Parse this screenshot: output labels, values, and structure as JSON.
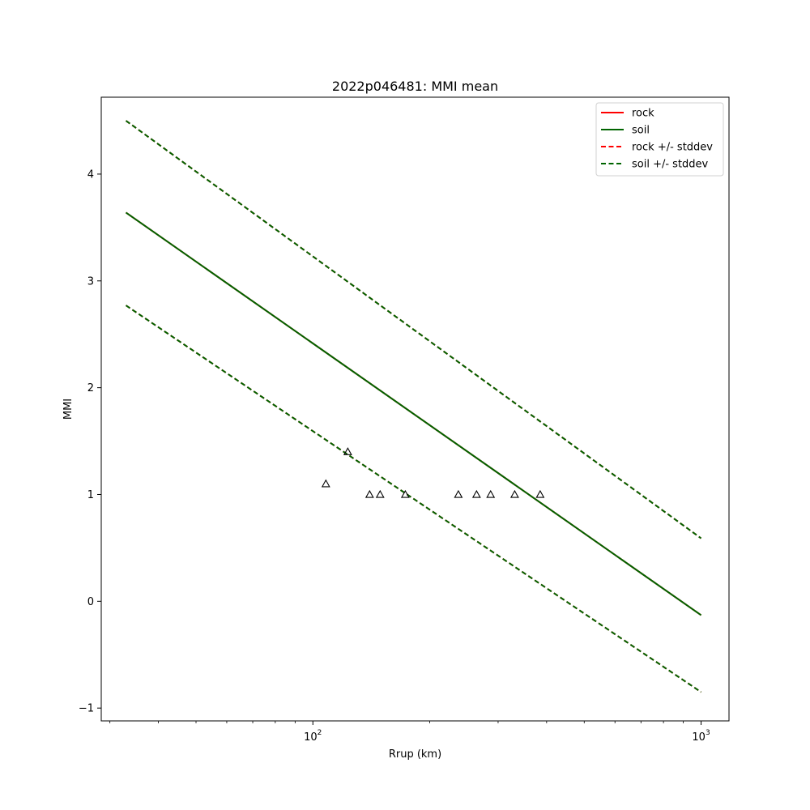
{
  "chart_data": {
    "type": "line",
    "title": "2022p046481: MMI mean",
    "xlabel": "Rrup (km)",
    "ylabel": "MMI",
    "xscale": "log",
    "xlim": [
      28.5,
      1180
    ],
    "ylim": [
      -1.12,
      4.72
    ],
    "grid": false,
    "legend_position": "top-right",
    "x_major_ticks": [
      {
        "value": 100,
        "base": "10",
        "exp": "2"
      },
      {
        "value": 1000,
        "base": "10",
        "exp": "3"
      }
    ],
    "y_ticks": [
      -1,
      0,
      1,
      2,
      3,
      4
    ],
    "y_tick_labels": [
      "−1",
      "0",
      "1",
      "2",
      "3",
      "4"
    ],
    "series": [
      {
        "name": "rock",
        "style": "solid",
        "color": "#ff0000",
        "x": [
          33,
          1000
        ],
        "y": [
          3.64,
          -0.13
        ]
      },
      {
        "name": "soil",
        "style": "solid",
        "color": "#006400",
        "x": [
          33,
          1000
        ],
        "y": [
          3.64,
          -0.13
        ]
      },
      {
        "name": "rock +/- stddev",
        "style": "dashed",
        "color": "#ff0000",
        "x": [
          33,
          1000
        ],
        "y": [
          4.5,
          0.59
        ],
        "y_lower": [
          2.77,
          -0.85
        ]
      },
      {
        "name": "soil +/- stddev",
        "style": "dashed",
        "color": "#006400",
        "x": [
          33,
          1000
        ],
        "y": [
          4.5,
          0.59
        ],
        "y_lower": [
          2.77,
          -0.85
        ]
      }
    ],
    "observations": {
      "marker": "triangle",
      "x": [
        108,
        123,
        140,
        149,
        173,
        237,
        264,
        287,
        331,
        385
      ],
      "y": [
        1.1,
        1.4,
        1.0,
        1.0,
        1.0,
        1.0,
        1.0,
        1.0,
        1.0,
        1.0
      ]
    }
  }
}
